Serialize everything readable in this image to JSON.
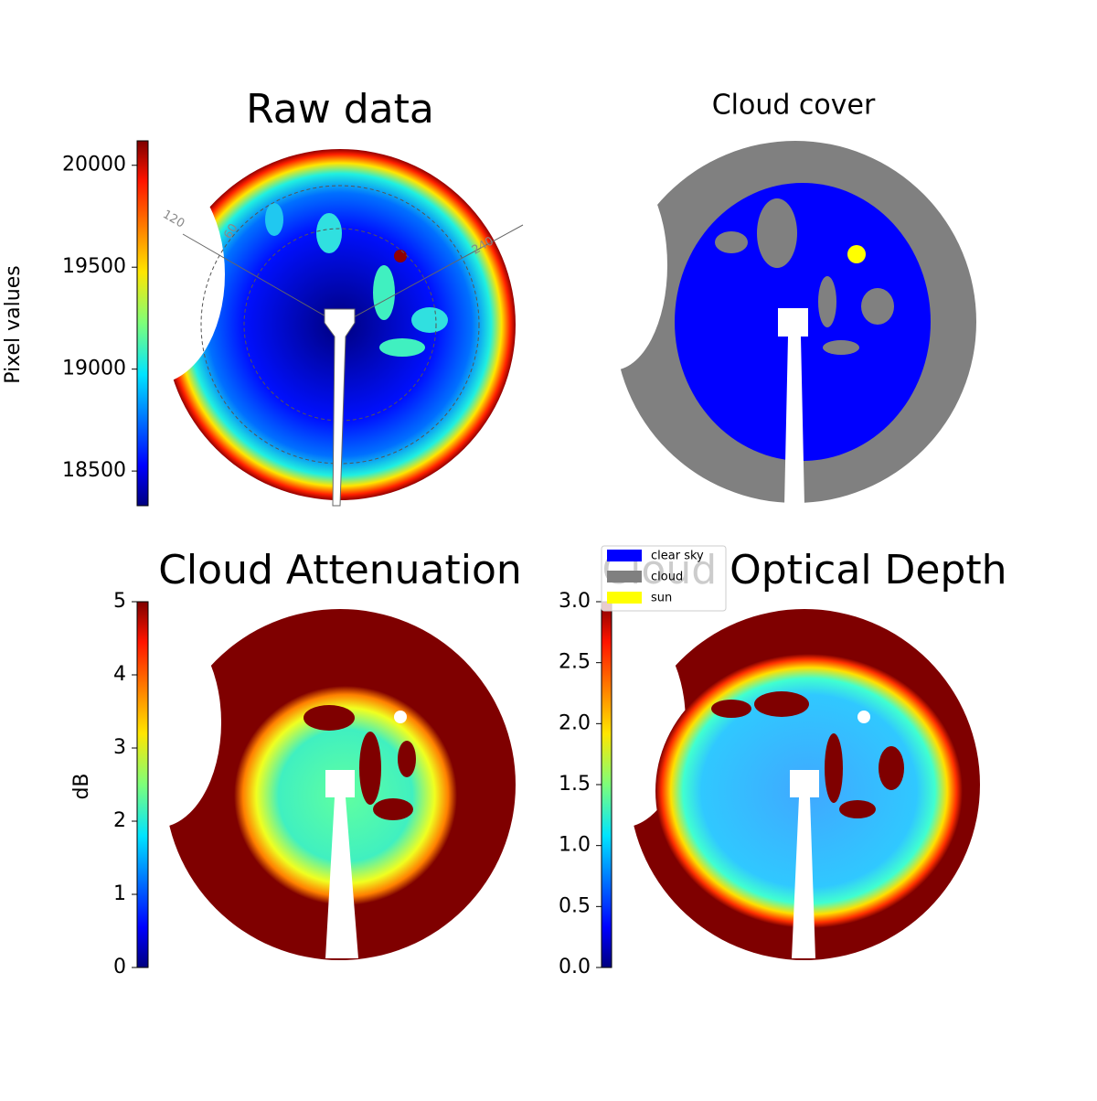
{
  "chart_data": [
    {
      "type": "image",
      "title": "Raw data",
      "colormap": "jet",
      "ylabel": "Pixel values",
      "ylim": [
        18330,
        20120
      ],
      "yticks": [
        18500,
        19000,
        19500,
        20000
      ],
      "annotations": [
        "120",
        "60",
        "240"
      ]
    },
    {
      "type": "image",
      "title": "Cloud cover",
      "series": [
        {
          "name": "clear sky",
          "color": "#0000ff"
        },
        {
          "name": "cloud",
          "color": "#808080"
        },
        {
          "name": "sun",
          "color": "#ffff00"
        }
      ]
    },
    {
      "type": "image",
      "title": "Cloud Attenuation",
      "colormap": "jet",
      "ylabel": "dB",
      "ylim": [
        0,
        5
      ],
      "yticks": [
        0,
        1,
        2,
        3,
        4,
        5
      ]
    },
    {
      "type": "image",
      "title": "Cloud Optical Depth",
      "colormap": "jet",
      "ylim": [
        0,
        3
      ],
      "yticks": [
        {
          "value": 0,
          "label": "0.0"
        },
        {
          "value": 0.5,
          "label": "0.5"
        },
        {
          "value": 1,
          "label": "1.0"
        },
        {
          "value": 1.5,
          "label": "1.5"
        },
        {
          "value": 2,
          "label": "2.0"
        },
        {
          "value": 2.5,
          "label": "2.5"
        },
        {
          "value": 3,
          "label": "3.0"
        }
      ]
    }
  ]
}
